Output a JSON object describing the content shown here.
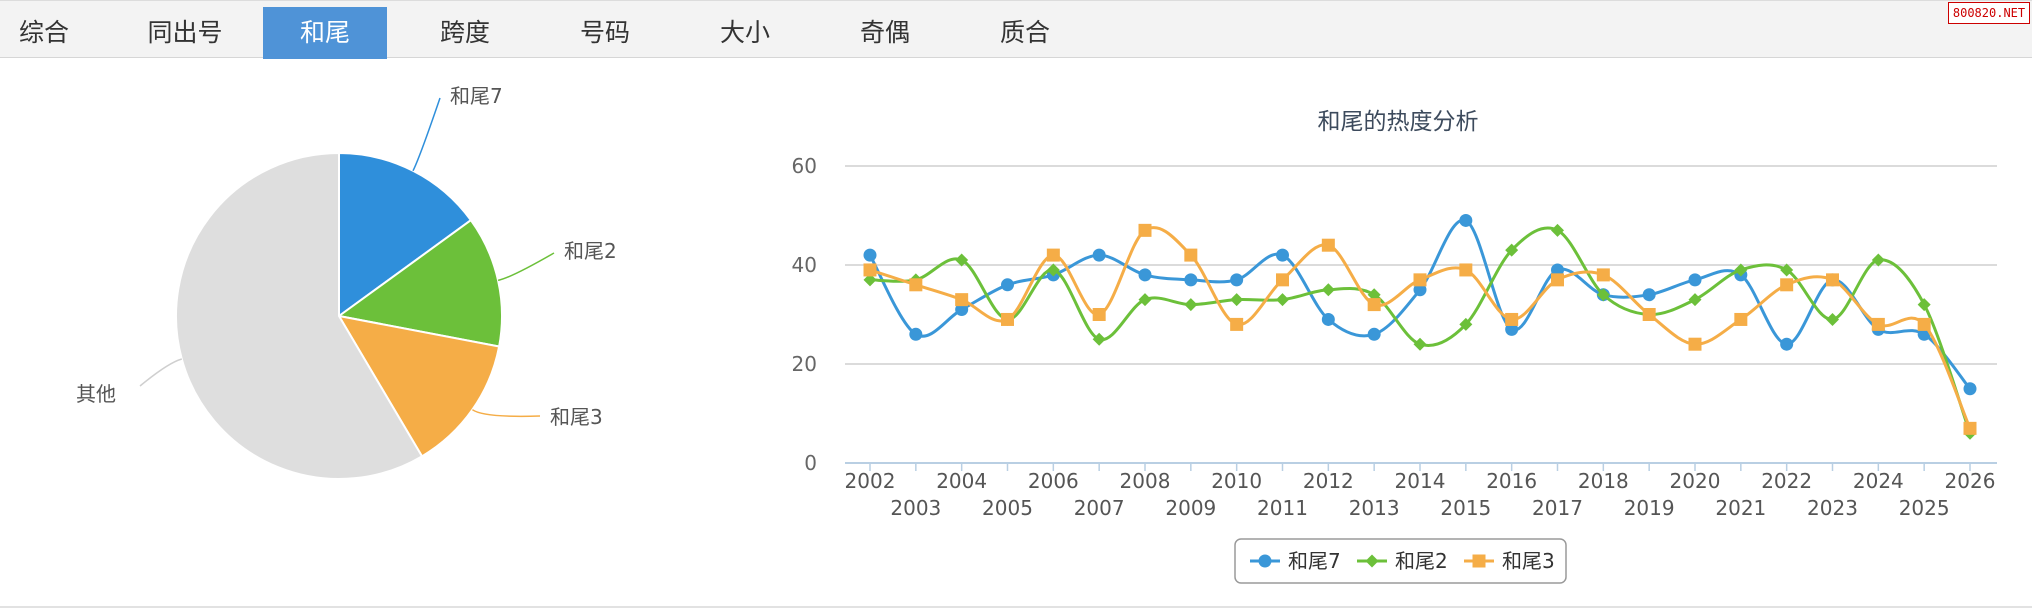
{
  "tabs": [
    {
      "label": "综合",
      "active": false
    },
    {
      "label": "同出号",
      "active": false
    },
    {
      "label": "和尾",
      "active": true
    },
    {
      "label": "跨度",
      "active": false
    },
    {
      "label": "号码",
      "active": false
    },
    {
      "label": "大小",
      "active": false
    },
    {
      "label": "奇偶",
      "active": false
    },
    {
      "label": "质合",
      "active": false
    }
  ],
  "watermark": "800820.NET",
  "colors": {
    "series1": "#3a97d8",
    "series2": "#6cc03a",
    "series3": "#f5ad47",
    "other": "#dedede",
    "tab_active": "#4f93d7"
  },
  "chart_data": [
    {
      "type": "pie",
      "title": "",
      "slices": [
        {
          "label": "和尾7",
          "value": 15,
          "color": "#2f8fdb"
        },
        {
          "label": "和尾2",
          "value": 13,
          "color": "#6cc03a"
        },
        {
          "label": "和尾3",
          "value": 13.5,
          "color": "#f5ad47"
        },
        {
          "label": "其他",
          "value": 58.5,
          "color": "#dedede"
        }
      ]
    },
    {
      "type": "line",
      "title": "和尾的热度分析",
      "xlabel": "",
      "ylabel": "",
      "ylim": [
        0,
        60
      ],
      "yticks": [
        0,
        20,
        40,
        60
      ],
      "grid": true,
      "legend_position": "bottom-center",
      "smooth": true,
      "x": [
        "2002",
        "2003",
        "2004",
        "2005",
        "2006",
        "2007",
        "2008",
        "2009",
        "2010",
        "2011",
        "2012",
        "2013",
        "2014",
        "2015",
        "2016",
        "2017",
        "2018",
        "2019",
        "2020",
        "2021",
        "2022",
        "2023",
        "2024",
        "2025",
        "2026"
      ],
      "series": [
        {
          "name": "和尾7",
          "marker": "circle",
          "color": "#3a97d8",
          "values": [
            42,
            26,
            31,
            36,
            38,
            42,
            38,
            37,
            37,
            42,
            29,
            26,
            35,
            49,
            27,
            39,
            34,
            34,
            37,
            38,
            24,
            37,
            27,
            26,
            15
          ]
        },
        {
          "name": "和尾2",
          "marker": "diamond",
          "color": "#6cc03a",
          "values": [
            37,
            37,
            41,
            29,
            39,
            25,
            33,
            32,
            33,
            33,
            35,
            34,
            24,
            28,
            43,
            47,
            34,
            30,
            33,
            39,
            39,
            29,
            41,
            32,
            6
          ]
        },
        {
          "name": "和尾3",
          "marker": "square",
          "color": "#f5ad47",
          "values": [
            39,
            36,
            33,
            29,
            42,
            30,
            47,
            42,
            28,
            37,
            44,
            32,
            37,
            39,
            29,
            37,
            38,
            30,
            24,
            29,
            36,
            37,
            28,
            28,
            7
          ]
        }
      ]
    }
  ]
}
